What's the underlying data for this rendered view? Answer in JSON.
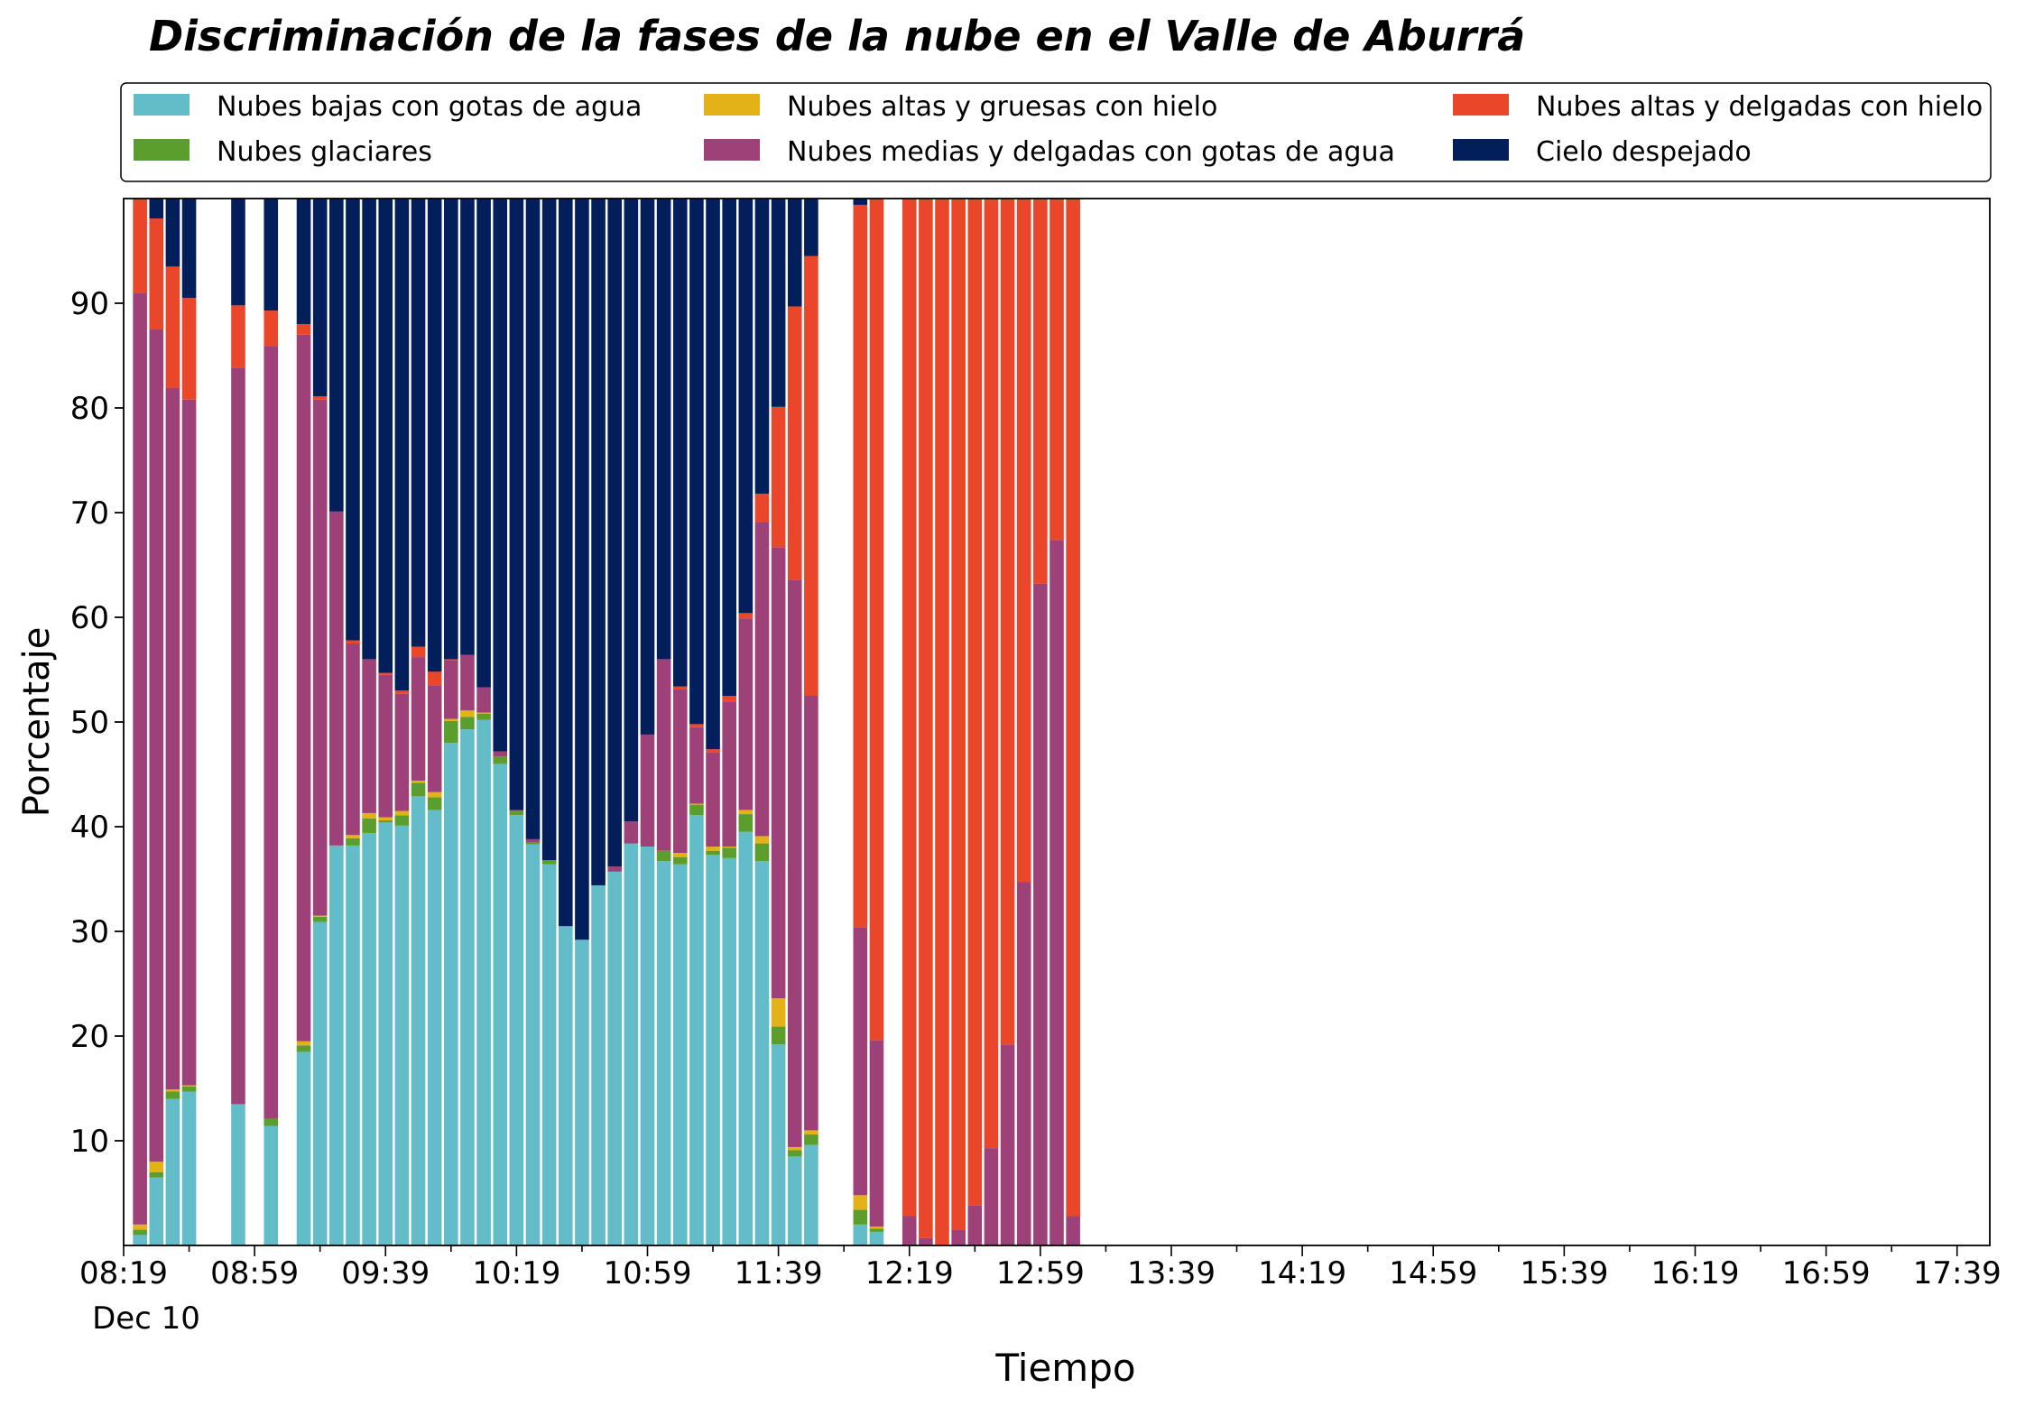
{
  "chart_data": {
    "type": "bar",
    "stacked": true,
    "title": "Discriminación de la fases de la nube en el Valle de Aburrá",
    "xlabel": "Tiempo",
    "ylabel": "Porcentaje",
    "date_label": "Dec 10",
    "ylim": [
      0,
      100
    ],
    "yticks": [
      10,
      20,
      30,
      40,
      50,
      60,
      70,
      80,
      90
    ],
    "grid": false,
    "legend_position": "top",
    "x_tick_labels": [
      "08:19",
      "08:59",
      "09:39",
      "10:19",
      "10:59",
      "11:39",
      "12:19",
      "12:59",
      "13:39",
      "14:19",
      "14:59",
      "15:39",
      "16:19",
      "16:59",
      "17:39"
    ],
    "time_step_minutes": 5,
    "x_start": "08:24",
    "x_end": "17:44",
    "series": [
      {
        "name": "Nubes bajas con gotas de agua",
        "color": "#62bdc8"
      },
      {
        "name": "Nubes glaciares",
        "color": "#5b9e2e"
      },
      {
        "name": "Nubes altas y gruesas con hielo",
        "color": "#e3b118"
      },
      {
        "name": "Nubes medias y delgadas con gotas de agua",
        "color": "#9f4179"
      },
      {
        "name": "Nubes altas y delgadas con hielo",
        "color": "#ea4629"
      },
      {
        "name": "Cielo despejado",
        "color": "#031f5b"
      }
    ],
    "bars": [
      {
        "time": "08:24",
        "values": [
          1.0,
          0.5,
          0.5,
          89.0,
          9.0,
          0
        ]
      },
      {
        "time": "08:29",
        "values": [
          6.5,
          0.5,
          1.0,
          79.5,
          10.6,
          1.9
        ]
      },
      {
        "time": "08:34",
        "values": [
          14.0,
          0.7,
          0.2,
          67.0,
          11.6,
          6.5
        ]
      },
      {
        "time": "08:39",
        "values": [
          14.7,
          0.5,
          0.1,
          65.5,
          9.7,
          9.5
        ]
      },
      {
        "time": "08:54",
        "values": [
          13.5,
          0,
          0,
          70.3,
          6.0,
          10.2
        ]
      },
      {
        "time": "09:04",
        "values": [
          11.4,
          0.7,
          0,
          73.8,
          3.4,
          10.7
        ]
      },
      {
        "time": "09:14",
        "values": [
          18.5,
          0.6,
          0.4,
          67.5,
          1.0,
          12.0
        ]
      },
      {
        "time": "09:19",
        "values": [
          30.9,
          0.5,
          0.1,
          49.3,
          0.3,
          18.9
        ]
      },
      {
        "time": "09:24",
        "values": [
          38.2,
          0,
          0,
          31.9,
          0,
          29.9
        ]
      },
      {
        "time": "09:29",
        "values": [
          38.2,
          0.7,
          0.3,
          18.3,
          0.3,
          42.2
        ]
      },
      {
        "time": "09:34",
        "values": [
          39.4,
          1.4,
          0.5,
          14.7,
          0,
          44.0
        ]
      },
      {
        "time": "09:39",
        "values": [
          40.4,
          0.2,
          0.3,
          13.6,
          0.2,
          45.3
        ]
      },
      {
        "time": "09:44",
        "values": [
          40.1,
          1.0,
          0.4,
          11.2,
          0.3,
          47.0
        ]
      },
      {
        "time": "09:49",
        "values": [
          42.9,
          1.3,
          0.2,
          11.8,
          1.0,
          42.8
        ]
      },
      {
        "time": "09:54",
        "values": [
          41.6,
          1.2,
          0.5,
          10.2,
          1.3,
          45.2
        ]
      },
      {
        "time": "09:59",
        "values": [
          48.0,
          2.1,
          0.2,
          5.6,
          0.1,
          44.0
        ]
      },
      {
        "time": "10:04",
        "values": [
          49.3,
          1.2,
          0.6,
          5.3,
          0,
          43.6
        ]
      },
      {
        "time": "10:09",
        "values": [
          50.2,
          0.6,
          0.1,
          2.4,
          0,
          46.7
        ]
      },
      {
        "time": "10:14",
        "values": [
          46.0,
          0.7,
          0,
          0.5,
          0,
          52.8
        ]
      },
      {
        "time": "10:19",
        "values": [
          41.1,
          0.4,
          0,
          0.1,
          0,
          58.4
        ]
      },
      {
        "time": "10:24",
        "values": [
          38.3,
          0.2,
          0,
          0.3,
          0,
          61.2
        ]
      },
      {
        "time": "10:29",
        "values": [
          36.4,
          0.4,
          0,
          0,
          0,
          63.2
        ]
      },
      {
        "time": "10:34",
        "values": [
          30.5,
          0,
          0,
          0,
          0,
          69.5
        ]
      },
      {
        "time": "10:39",
        "values": [
          29.2,
          0,
          0,
          0,
          0,
          70.8
        ]
      },
      {
        "time": "10:44",
        "values": [
          34.4,
          0,
          0,
          0,
          0,
          65.6
        ]
      },
      {
        "time": "10:49",
        "values": [
          35.7,
          0,
          0,
          0.5,
          0,
          63.8
        ]
      },
      {
        "time": "10:54",
        "values": [
          38.4,
          0,
          0,
          2.1,
          0,
          59.5
        ]
      },
      {
        "time": "10:59",
        "values": [
          38.1,
          0,
          0,
          10.7,
          0,
          51.2
        ]
      },
      {
        "time": "11:04",
        "values": [
          36.7,
          1.0,
          0,
          18.3,
          0,
          44.0
        ]
      },
      {
        "time": "11:09",
        "values": [
          36.4,
          0.7,
          0.4,
          15.6,
          0.3,
          46.6
        ]
      },
      {
        "time": "11:14",
        "values": [
          41.1,
          1.0,
          0.1,
          7.3,
          0.3,
          50.2
        ]
      },
      {
        "time": "11:19",
        "values": [
          37.3,
          0.4,
          0.4,
          9.0,
          0.3,
          52.6
        ]
      },
      {
        "time": "11:24",
        "values": [
          37.0,
          1.0,
          0.1,
          13.8,
          0.6,
          47.5
        ]
      },
      {
        "time": "11:29",
        "values": [
          39.5,
          1.7,
          0.4,
          18.3,
          0.5,
          39.6
        ]
      },
      {
        "time": "11:34",
        "values": [
          36.7,
          1.7,
          0.7,
          30.0,
          2.7,
          28.2
        ]
      },
      {
        "time": "11:39",
        "values": [
          19.2,
          1.7,
          2.7,
          43.1,
          13.4,
          19.9
        ]
      },
      {
        "time": "11:44",
        "values": [
          8.5,
          0.6,
          0.3,
          54.2,
          26.1,
          10.3
        ]
      },
      {
        "time": "11:49",
        "values": [
          9.6,
          1.0,
          0.4,
          41.5,
          42.0,
          5.5
        ]
      },
      {
        "time": "12:04",
        "values": [
          2.0,
          1.4,
          1.4,
          25.6,
          69.0,
          0.6
        ]
      },
      {
        "time": "12:09",
        "values": [
          1.3,
          0.3,
          0.2,
          17.8,
          80.4,
          0
        ]
      },
      {
        "time": "12:19",
        "values": [
          0,
          0,
          0,
          2.8,
          97.2,
          0
        ]
      },
      {
        "time": "12:24",
        "values": [
          0,
          0,
          0,
          0.7,
          99.3,
          0
        ]
      },
      {
        "time": "12:29",
        "values": [
          0,
          0,
          0,
          0,
          100.0,
          0
        ]
      },
      {
        "time": "12:34",
        "values": [
          0,
          0,
          0,
          1.5,
          98.5,
          0
        ]
      },
      {
        "time": "12:39",
        "values": [
          0,
          0,
          0,
          3.8,
          96.2,
          0
        ]
      },
      {
        "time": "12:44",
        "values": [
          0,
          0,
          0,
          9.3,
          90.7,
          0
        ]
      },
      {
        "time": "12:49",
        "values": [
          0,
          0,
          0,
          19.2,
          80.8,
          0
        ]
      },
      {
        "time": "12:54",
        "values": [
          0,
          0,
          0,
          34.7,
          65.3,
          0
        ]
      },
      {
        "time": "12:59",
        "values": [
          0,
          0,
          0,
          63.2,
          36.8,
          0
        ]
      },
      {
        "time": "13:04",
        "values": [
          0,
          0,
          0,
          67.4,
          32.6,
          0
        ]
      },
      {
        "time": "13:09",
        "values": [
          0,
          0,
          0,
          2.8,
          97.2,
          0
        ]
      }
    ]
  }
}
